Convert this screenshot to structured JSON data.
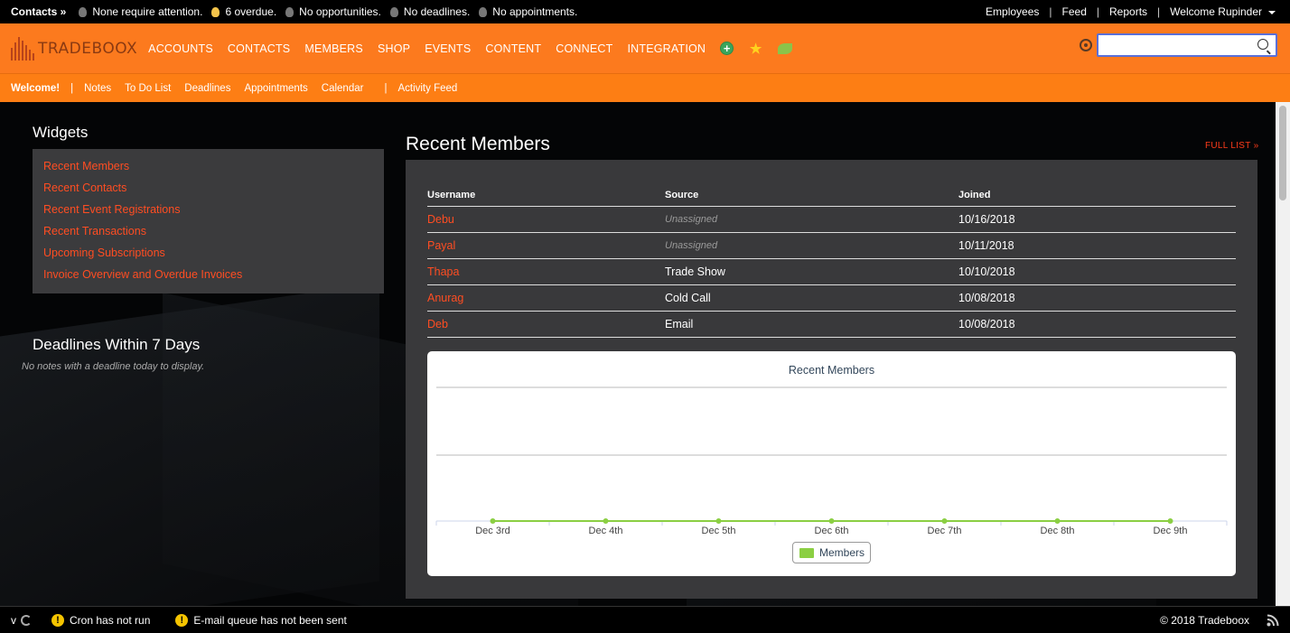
{
  "topbar": {
    "context_label": "Contacts »",
    "statuses": [
      {
        "icon": "lightbulb-off-icon",
        "text": "None require attention."
      },
      {
        "icon": "lightbulb-on-icon",
        "text": "6 overdue."
      },
      {
        "icon": "lightbulb-off-icon",
        "text": "No opportunities."
      },
      {
        "icon": "lightbulb-off-icon",
        "text": "No deadlines."
      },
      {
        "icon": "lightbulb-off-icon",
        "text": "No appointments."
      }
    ],
    "right_links": [
      "Employees",
      "Feed",
      "Reports"
    ],
    "user_menu": "Welcome Rupinder"
  },
  "nav": {
    "logo_text": "TRADEBOOX",
    "items": [
      "ACCOUNTS",
      "CONTACTS",
      "MEMBERS",
      "SHOP",
      "EVENTS",
      "CONTENT",
      "CONNECT",
      "INTEGRATION"
    ],
    "search_placeholder": "",
    "search_value": ""
  },
  "subnav": {
    "welcome": "Welcome!",
    "links": [
      "Notes",
      "To Do List",
      "Deadlines",
      "Appointments",
      "Calendar"
    ],
    "activity": "Activity Feed"
  },
  "widgets": {
    "title": "Widgets",
    "items": [
      "Recent Members",
      "Recent Contacts",
      "Recent Event Registrations",
      "Recent Transactions",
      "Upcoming Subscriptions",
      "Invoice Overview and Overdue Invoices"
    ]
  },
  "deadlines": {
    "title": "Deadlines Within 7 Days",
    "empty": "No notes with a deadline today to display."
  },
  "recent_members": {
    "title": "Recent Members",
    "full_list": "FULL LIST »",
    "columns": [
      "Username",
      "Source",
      "Joined"
    ],
    "rows": [
      {
        "username": "Debu",
        "source": "Unassigned",
        "joined": "10/16/2018"
      },
      {
        "username": "Payal",
        "source": "Unassigned",
        "joined": "10/11/2018"
      },
      {
        "username": "Thapa",
        "source": "Trade Show",
        "joined": "10/10/2018"
      },
      {
        "username": "Anurag",
        "source": "Cold Call",
        "joined": "10/08/2018"
      },
      {
        "username": "Deb",
        "source": "Email",
        "joined": "10/08/2018"
      }
    ]
  },
  "chart_data": {
    "type": "line",
    "title": "Recent Members",
    "categories": [
      "Dec 3rd",
      "Dec 4th",
      "Dec 5th",
      "Dec 6th",
      "Dec 7th",
      "Dec 8th",
      "Dec 9th"
    ],
    "series": [
      {
        "name": "Members",
        "values": [
          0,
          0,
          0,
          0,
          0,
          0,
          0
        ],
        "color": "#8bcf43"
      }
    ],
    "xlabel": "",
    "ylabel": "",
    "grid": true,
    "legend": "bottom-center"
  },
  "footer": {
    "version": "v",
    "warnings": [
      "Cron has not run",
      "E-mail queue has not been sent"
    ],
    "copyright": "© 2018 Tradeboox"
  },
  "colors": {
    "accent": "#fc7a1e",
    "link": "#ff4d22",
    "panel": "#39393b",
    "series": "#8bcf43"
  }
}
